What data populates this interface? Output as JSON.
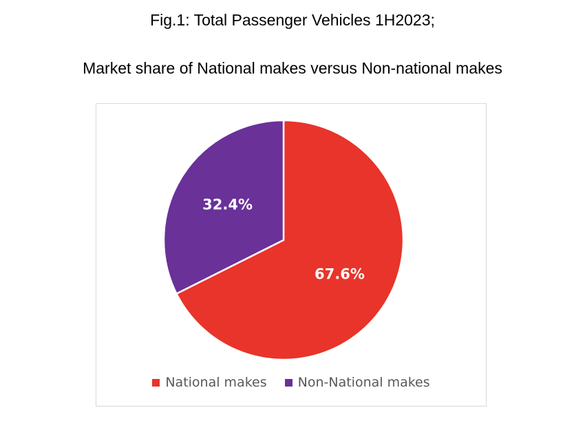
{
  "title_line1": "Fig.1: Total Passenger Vehicles 1H2023;",
  "title_line2": "Market share of National makes versus Non-national makes",
  "chart_data": {
    "type": "pie",
    "categories": [
      "National makes",
      "Non-National makes"
    ],
    "values": [
      67.6,
      32.4
    ],
    "labels": [
      "67.6%",
      "32.4%"
    ],
    "colors": [
      "#E8342A",
      "#6A3199"
    ],
    "start": "12 o'clock",
    "direction": "clockwise",
    "legend": {
      "placement": "bottom",
      "entries": [
        "National makes",
        "Non-National makes"
      ]
    }
  }
}
